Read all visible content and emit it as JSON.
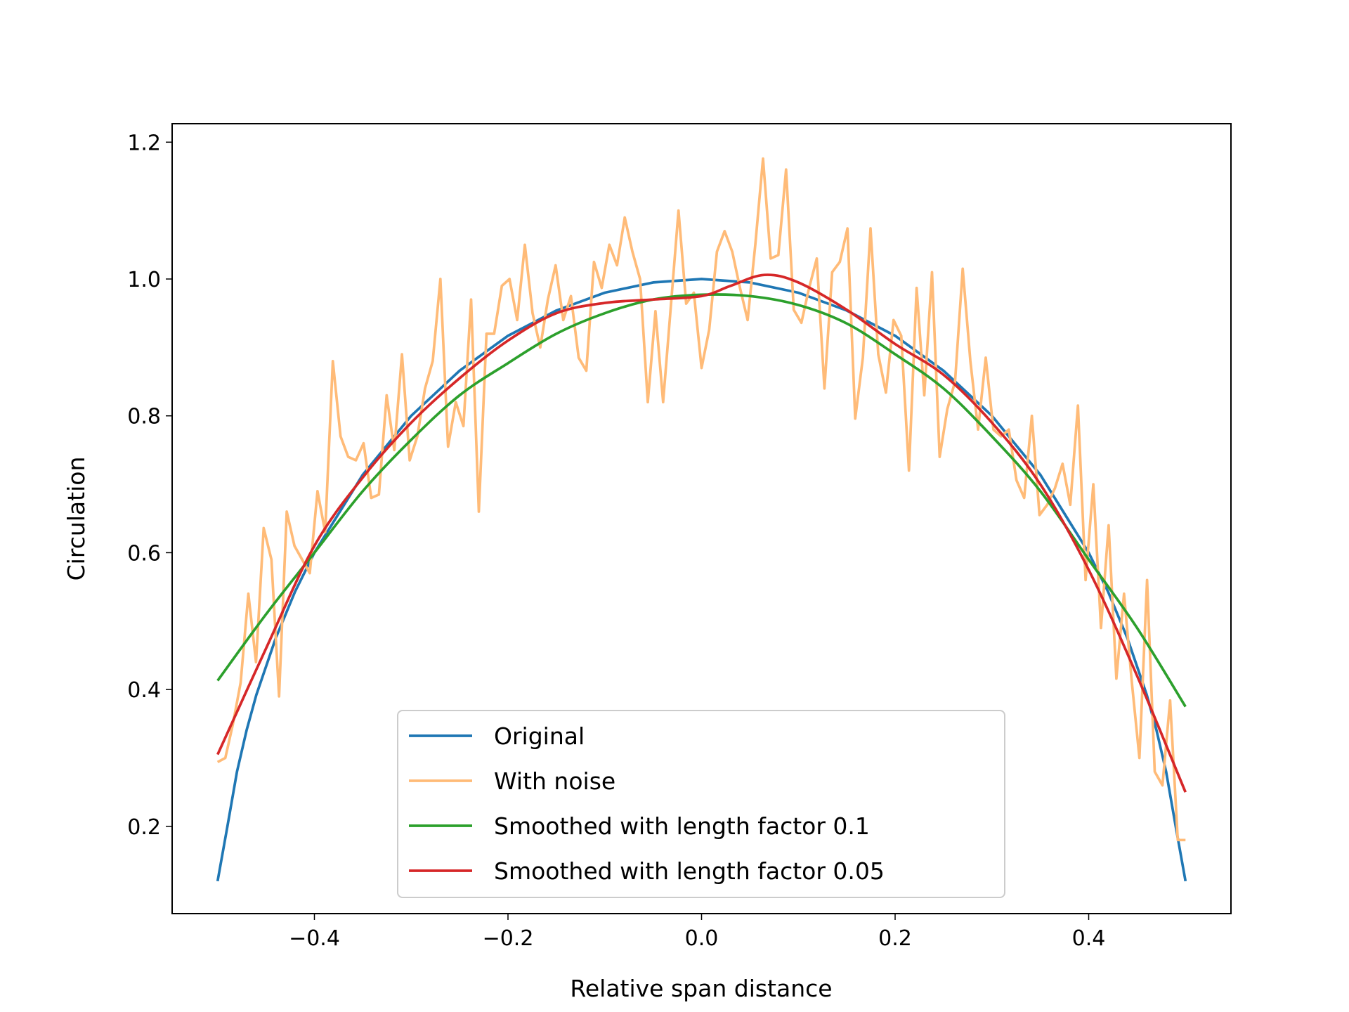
{
  "chart_data": {
    "type": "line",
    "title": "",
    "xlabel": "Relative span distance",
    "ylabel": "Circulation",
    "xlim": [
      -0.547,
      0.547
    ],
    "ylim": [
      0.0725,
      1.227
    ],
    "xticks": [
      -0.4,
      -0.2,
      0.0,
      0.2,
      0.4
    ],
    "xtick_labels": [
      "−0.4",
      "−0.2",
      "0.0",
      "0.2",
      "0.4"
    ],
    "yticks": [
      0.2,
      0.4,
      0.6,
      0.8,
      1.0,
      1.2
    ],
    "ytick_labels": [
      "0.2",
      "0.4",
      "0.6",
      "0.8",
      "1.0",
      "1.2"
    ],
    "grid": false,
    "legend_placement": "lower-center",
    "series": [
      {
        "name": "Original",
        "color": "#1f77b4",
        "x": [
          -0.5,
          -0.49,
          -0.48,
          -0.47,
          -0.46,
          -0.44,
          -0.42,
          -0.4,
          -0.35,
          -0.3,
          -0.25,
          -0.2,
          -0.15,
          -0.1,
          -0.05,
          0.0,
          0.05,
          0.1,
          0.15,
          0.2,
          0.25,
          0.3,
          0.35,
          0.4,
          0.42,
          0.44,
          0.46,
          0.47,
          0.48,
          0.49,
          0.5
        ],
        "y": [
          0.12,
          0.199,
          0.28,
          0.341,
          0.392,
          0.475,
          0.543,
          0.6,
          0.714,
          0.8,
          0.866,
          0.917,
          0.954,
          0.98,
          0.995,
          1.0,
          0.995,
          0.98,
          0.954,
          0.917,
          0.866,
          0.8,
          0.714,
          0.6,
          0.543,
          0.475,
          0.392,
          0.341,
          0.28,
          0.199,
          0.12
        ]
      },
      {
        "name": "With noise",
        "color": "#ffbb78",
        "x_start": -0.5,
        "x_end": 0.5,
        "y": [
          0.294,
          0.3,
          0.35,
          0.41,
          0.54,
          0.44,
          0.636,
          0.59,
          0.39,
          0.66,
          0.61,
          0.59,
          0.57,
          0.69,
          0.63,
          0.88,
          0.77,
          0.74,
          0.735,
          0.76,
          0.68,
          0.685,
          0.83,
          0.75,
          0.89,
          0.735,
          0.77,
          0.84,
          0.88,
          1.0,
          0.755,
          0.82,
          0.785,
          0.97,
          0.66,
          0.92,
          0.92,
          0.99,
          1.0,
          0.94,
          1.05,
          0.95,
          0.9,
          0.97,
          1.02,
          0.94,
          0.975,
          0.885,
          0.866,
          1.025,
          0.987,
          1.05,
          1.02,
          1.09,
          1.04,
          1.0,
          0.82,
          0.953,
          0.82,
          0.96,
          1.1,
          0.964,
          0.98,
          0.87,
          0.926,
          1.04,
          1.07,
          1.04,
          0.987,
          0.94,
          1.05,
          1.176,
          1.03,
          1.035,
          1.16,
          0.955,
          0.936,
          0.987,
          1.03,
          0.84,
          1.01,
          1.025,
          1.074,
          0.796,
          0.885,
          1.074,
          0.89,
          0.834,
          0.94,
          0.917,
          0.72,
          0.987,
          0.83,
          1.01,
          0.74,
          0.81,
          0.85,
          1.015,
          0.88,
          0.78,
          0.885,
          0.78,
          0.77,
          0.78,
          0.706,
          0.68,
          0.8,
          0.655,
          0.67,
          0.694,
          0.73,
          0.67,
          0.815,
          0.56,
          0.7,
          0.49,
          0.64,
          0.416,
          0.54,
          0.413,
          0.3,
          0.56,
          0.28,
          0.26,
          0.384,
          0.18,
          0.18
        ]
      },
      {
        "name": "Smoothed with length factor 0.1",
        "color": "#2ca02c",
        "x": [
          -0.5,
          -0.45,
          -0.4,
          -0.35,
          -0.3,
          -0.25,
          -0.2,
          -0.15,
          -0.1,
          -0.05,
          0.0,
          0.05,
          0.1,
          0.15,
          0.2,
          0.25,
          0.3,
          0.35,
          0.4,
          0.45,
          0.5
        ],
        "y": [
          0.413,
          0.51,
          0.6,
          0.69,
          0.765,
          0.83,
          0.877,
          0.92,
          0.95,
          0.97,
          0.977,
          0.975,
          0.962,
          0.935,
          0.89,
          0.84,
          0.77,
          0.69,
          0.59,
          0.49,
          0.375
        ]
      },
      {
        "name": "Smoothed with length factor 0.05",
        "color": "#d62728",
        "x": [
          -0.5,
          -0.45,
          -0.4,
          -0.35,
          -0.3,
          -0.25,
          -0.2,
          -0.15,
          -0.1,
          -0.05,
          0.0,
          0.03,
          0.065,
          0.1,
          0.15,
          0.2,
          0.25,
          0.3,
          0.35,
          0.4,
          0.45,
          0.5
        ],
        "y": [
          0.305,
          0.46,
          0.61,
          0.71,
          0.79,
          0.855,
          0.91,
          0.95,
          0.965,
          0.97,
          0.975,
          0.99,
          1.006,
          0.995,
          0.955,
          0.905,
          0.86,
          0.79,
          0.7,
          0.575,
          0.42,
          0.25
        ]
      }
    ]
  }
}
